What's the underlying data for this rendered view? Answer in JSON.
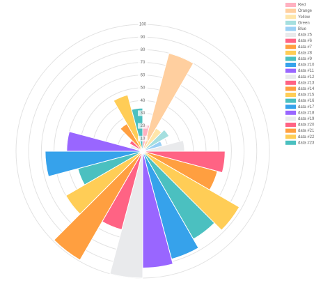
{
  "chart_data": {
    "type": "polarArea",
    "categories": [
      "Red",
      "Orange",
      "Yellow",
      "Green",
      "Blue",
      "data #5",
      "data #6",
      "data #7",
      "data #8",
      "data #9",
      "data #10",
      "data #11",
      "data #12",
      "data #13",
      "data #14",
      "data #15",
      "data #16",
      "data #17",
      "data #18",
      "data #19",
      "data #20",
      "data #21",
      "data #22",
      "data #23"
    ],
    "values": [
      21,
      80,
      21,
      24,
      16,
      33,
      65,
      61,
      88,
      80,
      88,
      92,
      100,
      64,
      99,
      70,
      53,
      77,
      60,
      10,
      12,
      25,
      46,
      34
    ],
    "colors": [
      "#ffb1c1",
      "#ffcf9f",
      "#ffe6aa",
      "#a5dfdf",
      "#9ad0f5",
      "#e9eaec",
      "#ff6384",
      "#ff9f40",
      "#ffcd56",
      "#4bc0c0",
      "#36a2eb",
      "#9966ff",
      "#e9eaec",
      "#ff6384",
      "#ff9f40",
      "#ffcd56",
      "#4bc0c0",
      "#36a2eb",
      "#9966ff",
      "#e9eaec",
      "#ff6384",
      "#ff9f40",
      "#ffcd56",
      "#4bc0c0"
    ],
    "rlim": [
      0,
      100
    ],
    "rticks": [
      10,
      20,
      30,
      40,
      50,
      60,
      70,
      80,
      90,
      100
    ],
    "grid": true,
    "legend": "right"
  }
}
